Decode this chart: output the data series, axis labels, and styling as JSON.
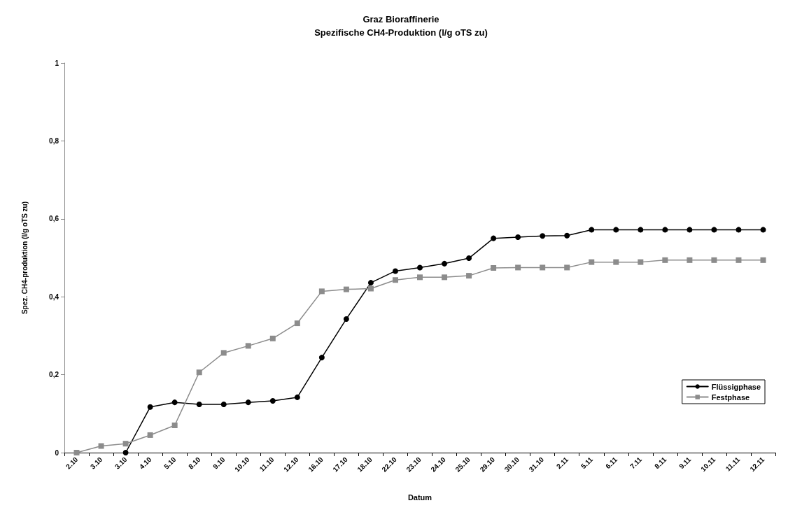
{
  "chart_data": {
    "type": "line",
    "title": "Graz Bioraffinerie",
    "subtitle": "Spezifische CH4-Produktion (l/g oTS zu)",
    "xlabel": "Datum",
    "ylabel": "Spez. CH4-produktion (l/g oTS zu)",
    "categories": [
      "2.10",
      "3.10",
      "3.10",
      "4.10",
      "5.10",
      "8.10",
      "9.10",
      "10.10",
      "11.10",
      "12.10",
      "16.10",
      "17.10",
      "18.10",
      "22.10",
      "23.10",
      "24.10",
      "25.10",
      "29.10",
      "30.10",
      "31.10",
      "2.11",
      "5.11",
      "6.11",
      "7.11",
      "8.11",
      "9.11",
      "10.11",
      "11.11",
      "12.11"
    ],
    "series": [
      {
        "name": "Flüssigphase",
        "color": "#000000",
        "marker": "circle",
        "values": [
          null,
          null,
          0,
          0.117,
          0.129,
          0.124,
          0.124,
          0.129,
          0.133,
          0.142,
          0.244,
          0.343,
          0.436,
          0.466,
          0.475,
          0.485,
          0.499,
          0.55,
          0.553,
          0.556,
          0.557,
          0.572,
          0.572,
          0.572,
          0.572,
          0.572,
          0.572,
          0.572,
          0.572
        ]
      },
      {
        "name": "Festphase",
        "color": "#8c8c8c",
        "marker": "square",
        "values": [
          0,
          0.017,
          0.023,
          0.045,
          0.07,
          0.206,
          0.256,
          0.274,
          0.293,
          0.332,
          0.414,
          0.419,
          0.421,
          0.443,
          0.45,
          0.45,
          0.454,
          0.474,
          0.475,
          0.475,
          0.475,
          0.489,
          0.489,
          0.489,
          0.494,
          0.494,
          0.494,
          0.494,
          0.494
        ]
      }
    ],
    "ylim": [
      0,
      1
    ],
    "yticks": [
      0,
      {
        "value": 0.2,
        "label": "0,2"
      },
      {
        "value": 0.4,
        "label": "0,4"
      },
      {
        "value": 0.6,
        "label": "0,6"
      },
      {
        "value": 0.8,
        "label": "0,8"
      },
      1
    ],
    "grid": false,
    "legend": "right",
    "line_style": "solid"
  }
}
